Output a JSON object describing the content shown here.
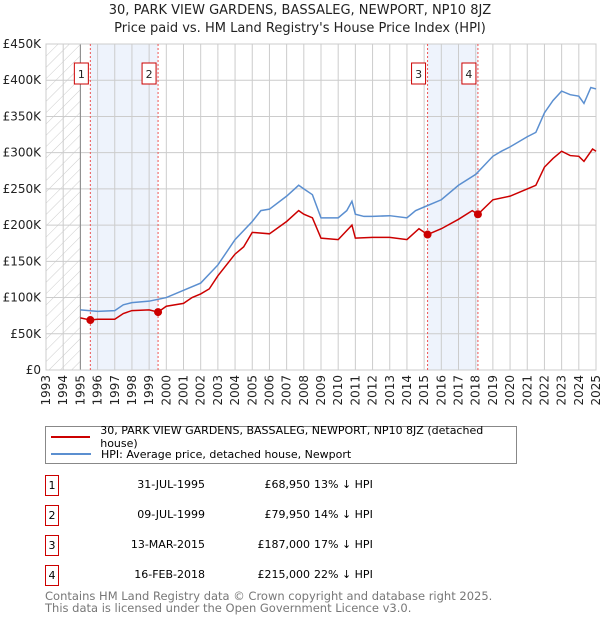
{
  "chart_data": {
    "type": "line",
    "title": "30, PARK VIEW GARDENS, BASSALEG, NEWPORT, NP10 8JZ",
    "subtitle": "Price paid vs. HM Land Registry's House Price Index (HPI)",
    "xlim": [
      1993,
      2025
    ],
    "ylim": [
      0,
      450000
    ],
    "x_ticks": [
      "1993",
      "1994",
      "1995",
      "1996",
      "1997",
      "1998",
      "1999",
      "2000",
      "2001",
      "2002",
      "2003",
      "2004",
      "2005",
      "2006",
      "2007",
      "2008",
      "2009",
      "2010",
      "2011",
      "2012",
      "2013",
      "2014",
      "2015",
      "2016",
      "2017",
      "2018",
      "2019",
      "2020",
      "2021",
      "2022",
      "2023",
      "2024",
      "2025"
    ],
    "y_ticks": [
      {
        "v": 0,
        "label": "£0"
      },
      {
        "v": 50000,
        "label": "£50K"
      },
      {
        "v": 100000,
        "label": "£100K"
      },
      {
        "v": 150000,
        "label": "£150K"
      },
      {
        "v": 200000,
        "label": "£200K"
      },
      {
        "v": 250000,
        "label": "£250K"
      },
      {
        "v": 300000,
        "label": "£300K"
      },
      {
        "v": 350000,
        "label": "£350K"
      },
      {
        "v": 400000,
        "label": "£400K"
      },
      {
        "v": 450000,
        "label": "£450K"
      }
    ],
    "grid": true,
    "shaded_ranges": [
      [
        1995.58,
        1999.52
      ],
      [
        2015.2,
        2018.13
      ]
    ],
    "hatched_range": [
      1993,
      1995
    ],
    "series": [
      {
        "name": "30, PARK VIEW GARDENS, BASSALEG, NEWPORT, NP10 8JZ (detached house)",
        "color": "#cc0000",
        "x": [
          1995,
          1995.58,
          1996,
          1997,
          1997.5,
          1998,
          1999,
          1999.52,
          2000,
          2001,
          2001.5,
          2002,
          2002.5,
          2003,
          2003.5,
          2004,
          2004.5,
          2005,
          2006,
          2007,
          2007.7,
          2008,
          2008.5,
          2009,
          2010,
          2010.8,
          2011,
          2012,
          2013,
          2014,
          2014.7,
          2015.2,
          2016,
          2017,
          2017.8,
          2018.13,
          2019,
          2020,
          2021,
          2021.5,
          2022,
          2022.5,
          2023,
          2023.5,
          2024,
          2024.3,
          2024.8,
          2025
        ],
        "y": [
          72000,
          68950,
          70000,
          70000,
          78000,
          82000,
          83000,
          79950,
          88000,
          92000,
          100000,
          105000,
          112000,
          130000,
          145000,
          160000,
          170000,
          190000,
          188000,
          205000,
          220000,
          215000,
          210000,
          182000,
          180000,
          200000,
          182000,
          183000,
          183000,
          180000,
          195000,
          187000,
          195000,
          208000,
          220000,
          215000,
          235000,
          240000,
          250000,
          255000,
          280000,
          292000,
          302000,
          296000,
          295000,
          288000,
          305000,
          302000
        ]
      },
      {
        "name": "HPI: Average price, detached house, Newport",
        "color": "#5b8fd0",
        "x": [
          1995,
          1996,
          1997,
          1997.5,
          1998,
          1999,
          2000,
          2001,
          2002,
          2003,
          2004,
          2005,
          2005.5,
          2006,
          2007,
          2007.7,
          2008,
          2008.5,
          2009,
          2010,
          2010.5,
          2010.8,
          2011,
          2011.5,
          2012,
          2013,
          2014,
          2014.5,
          2015,
          2016,
          2017,
          2018,
          2019,
          2019.5,
          2020,
          2021,
          2021.5,
          2022,
          2022.5,
          2023,
          2023.5,
          2024,
          2024.3,
          2024.7,
          2025
        ],
        "y": [
          83000,
          81000,
          82000,
          90000,
          93000,
          95000,
          100000,
          110000,
          120000,
          145000,
          180000,
          205000,
          220000,
          222000,
          240000,
          255000,
          250000,
          242000,
          210000,
          210000,
          220000,
          233000,
          215000,
          212000,
          212000,
          213000,
          210000,
          220000,
          225000,
          235000,
          255000,
          270000,
          295000,
          302000,
          308000,
          322000,
          328000,
          355000,
          372000,
          385000,
          380000,
          378000,
          368000,
          390000,
          388000
        ]
      }
    ],
    "sales": [
      {
        "n": "1",
        "x": 1995.58,
        "y": 68950,
        "date": "31-JUL-1995",
        "price": "£68,950",
        "diff": "13% ↓ HPI"
      },
      {
        "n": "2",
        "x": 1999.52,
        "y": 79950,
        "date": "09-JUL-1999",
        "price": "£79,950",
        "diff": "14% ↓ HPI"
      },
      {
        "n": "3",
        "x": 2015.2,
        "y": 187000,
        "date": "13-MAR-2015",
        "price": "£187,000",
        "diff": "17% ↓ HPI"
      },
      {
        "n": "4",
        "x": 2018.13,
        "y": 215000,
        "date": "16-FEB-2018",
        "price": "£215,000",
        "diff": "22% ↓ HPI"
      }
    ],
    "legend_placement": "below"
  },
  "footer": {
    "line1": "Contains HM Land Registry data © Crown copyright and database right 2025.",
    "line2": "This data is licensed under the Open Government Licence v3.0."
  }
}
